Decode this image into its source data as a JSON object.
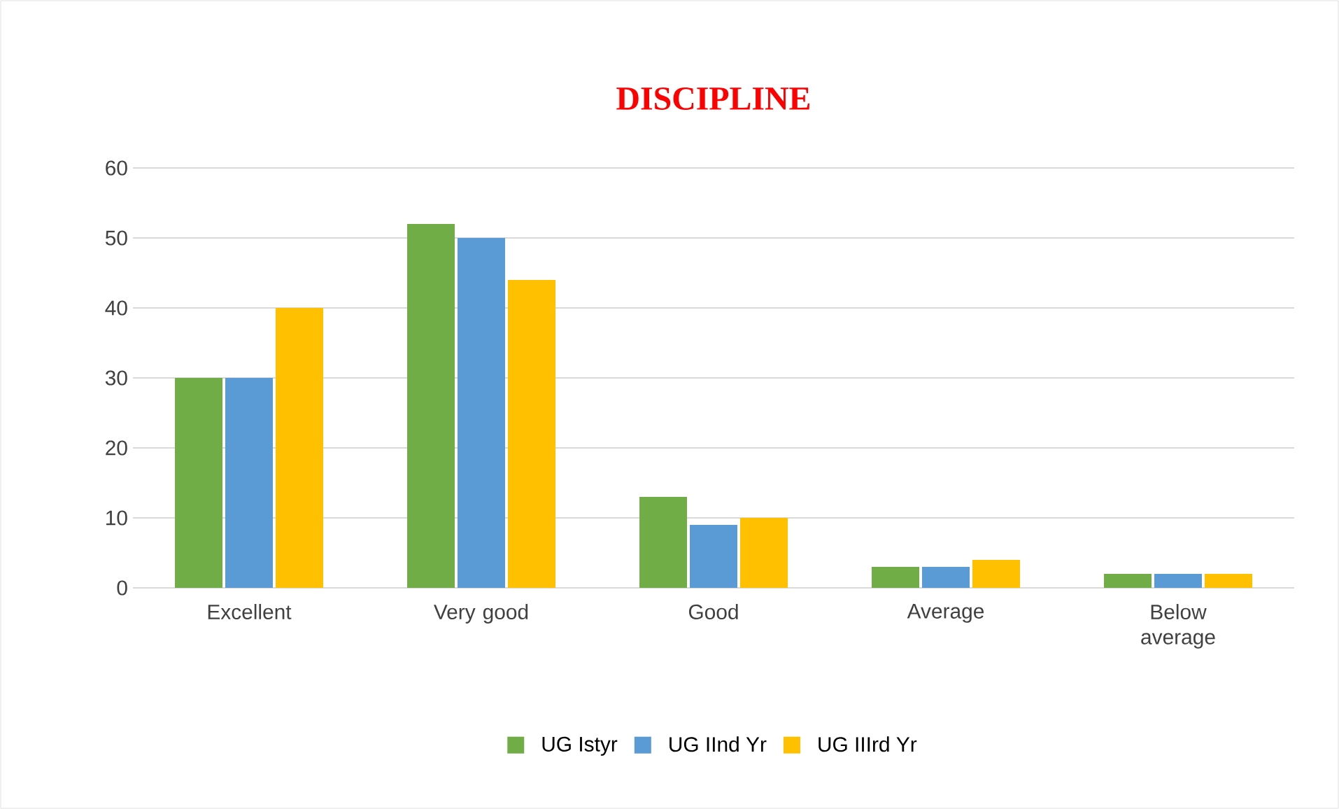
{
  "chart_data": {
    "type": "bar",
    "title": "DISCIPLINE",
    "categories": [
      "Excellent",
      "Very good",
      "Good",
      "Average",
      "Below average"
    ],
    "series": [
      {
        "name": "UG Istyr",
        "color": "#70ad47",
        "values": [
          30,
          52,
          13,
          3,
          2
        ]
      },
      {
        "name": "UG IInd Yr",
        "color": "#5b9bd5",
        "values": [
          30,
          50,
          9,
          3,
          2
        ]
      },
      {
        "name": "UG IIIrd Yr",
        "color": "#ffc000",
        "values": [
          40,
          44,
          10,
          4,
          2
        ]
      }
    ],
    "ylim": [
      0,
      60
    ],
    "yticks": [
      0,
      10,
      20,
      30,
      40,
      50,
      60
    ],
    "grid": "y",
    "legend": "bottom"
  }
}
